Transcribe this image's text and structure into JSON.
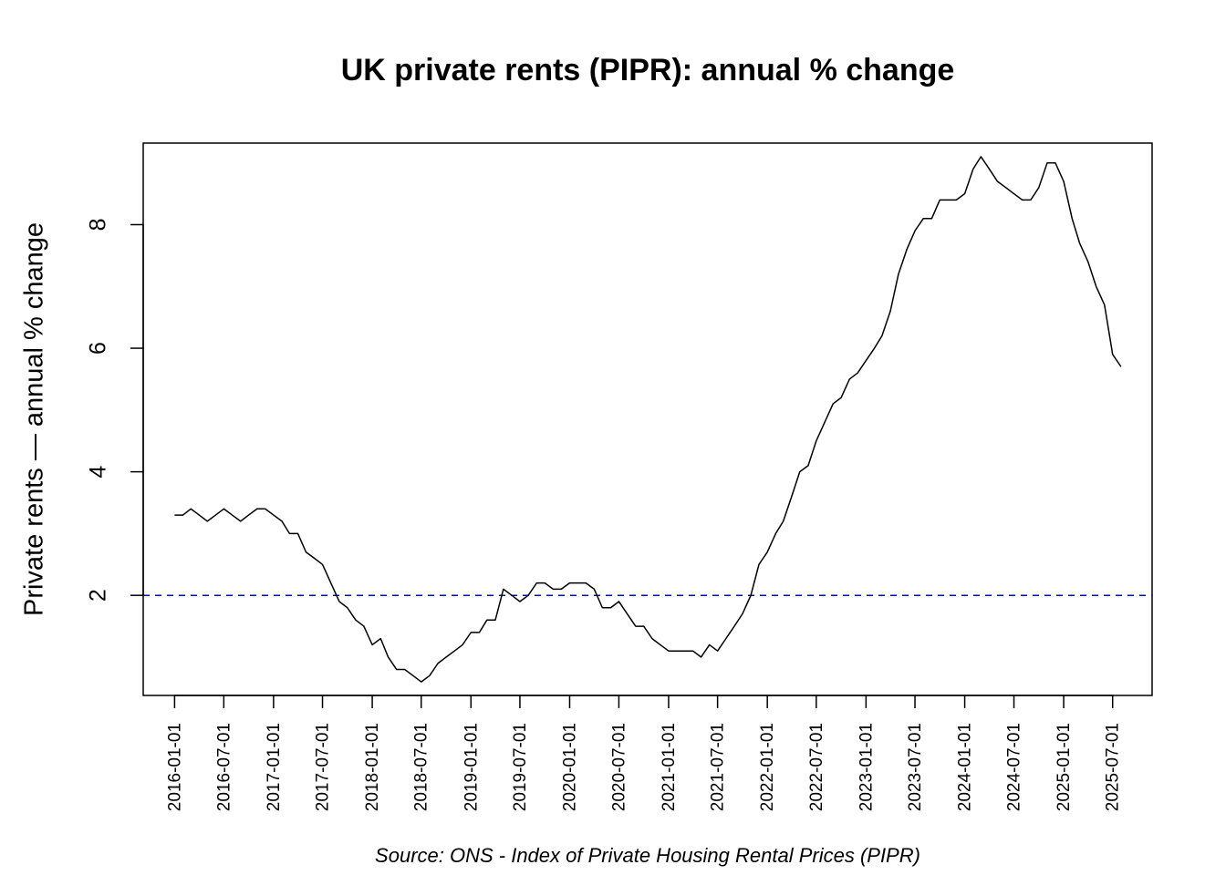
{
  "chart_data": {
    "type": "line",
    "title": "UK private rents (PIPR): annual % change",
    "xlabel": "",
    "ylabel": "Private rents — annual % change",
    "source": "Source: ONS - Index of Private Housing Rental Prices (PIPR)",
    "x_tick_labels": [
      "2016-01-01",
      "2016-07-01",
      "2017-01-01",
      "2017-07-01",
      "2018-01-01",
      "2018-07-01",
      "2019-01-01",
      "2019-07-01",
      "2020-01-01",
      "2020-07-01",
      "2021-01-01",
      "2021-07-01",
      "2022-01-01",
      "2022-07-01",
      "2023-01-01",
      "2023-07-01",
      "2024-01-01",
      "2024-07-01",
      "2025-01-01",
      "2025-07-01"
    ],
    "y_ticks": [
      2,
      4,
      6,
      8
    ],
    "xlim": [
      "2015-09-07",
      "2025-11-24"
    ],
    "ylim": [
      0.38,
      9.32
    ],
    "grid": false,
    "legend": "none",
    "reference_line": {
      "y": 2,
      "color": "#0000ff",
      "style": "dashed"
    },
    "series": [
      {
        "color": "#000000",
        "x": [
          "2016-01-01",
          "2016-02-01",
          "2016-03-01",
          "2016-04-01",
          "2016-05-01",
          "2016-06-01",
          "2016-07-01",
          "2016-08-01",
          "2016-09-01",
          "2016-10-01",
          "2016-11-01",
          "2016-12-01",
          "2017-01-01",
          "2017-02-01",
          "2017-03-01",
          "2017-04-01",
          "2017-05-01",
          "2017-06-01",
          "2017-07-01",
          "2017-08-01",
          "2017-09-01",
          "2017-10-01",
          "2017-11-01",
          "2017-12-01",
          "2018-01-01",
          "2018-02-01",
          "2018-03-01",
          "2018-04-01",
          "2018-05-01",
          "2018-06-01",
          "2018-07-01",
          "2018-08-01",
          "2018-09-01",
          "2018-10-01",
          "2018-11-01",
          "2018-12-01",
          "2019-01-01",
          "2019-02-01",
          "2019-03-01",
          "2019-04-01",
          "2019-05-01",
          "2019-06-01",
          "2019-07-01",
          "2019-08-01",
          "2019-09-01",
          "2019-10-01",
          "2019-11-01",
          "2019-12-01",
          "2020-01-01",
          "2020-02-01",
          "2020-03-01",
          "2020-04-01",
          "2020-05-01",
          "2020-06-01",
          "2020-07-01",
          "2020-08-01",
          "2020-09-01",
          "2020-10-01",
          "2020-11-01",
          "2020-12-01",
          "2021-01-01",
          "2021-02-01",
          "2021-03-01",
          "2021-04-01",
          "2021-05-01",
          "2021-06-01",
          "2021-07-01",
          "2021-08-01",
          "2021-09-01",
          "2021-10-01",
          "2021-11-01",
          "2021-12-01",
          "2022-01-01",
          "2022-02-01",
          "2022-03-01",
          "2022-04-01",
          "2022-05-01",
          "2022-06-01",
          "2022-07-01",
          "2022-08-01",
          "2022-09-01",
          "2022-10-01",
          "2022-11-01",
          "2022-12-01",
          "2023-01-01",
          "2023-02-01",
          "2023-03-01",
          "2023-04-01",
          "2023-05-01",
          "2023-06-01",
          "2023-07-01",
          "2023-08-01",
          "2023-09-01",
          "2023-10-01",
          "2023-11-01",
          "2023-12-01",
          "2024-01-01",
          "2024-02-01",
          "2024-03-01",
          "2024-04-01",
          "2024-05-01",
          "2024-06-01",
          "2024-07-01",
          "2024-08-01",
          "2024-09-01",
          "2024-10-01",
          "2024-11-01",
          "2024-12-01",
          "2025-01-01",
          "2025-02-01",
          "2025-03-01",
          "2025-04-01",
          "2025-05-01",
          "2025-06-01",
          "2025-07-01",
          "2025-08-01"
        ],
        "values": [
          3.3,
          3.3,
          3.4,
          3.3,
          3.2,
          3.3,
          3.4,
          3.3,
          3.2,
          3.3,
          3.4,
          3.4,
          3.3,
          3.2,
          3.0,
          3.0,
          2.7,
          2.6,
          2.5,
          2.2,
          1.9,
          1.8,
          1.6,
          1.5,
          1.2,
          1.3,
          1.0,
          0.8,
          0.8,
          0.7,
          0.6,
          0.7,
          0.9,
          1.0,
          1.1,
          1.2,
          1.4,
          1.4,
          1.6,
          1.6,
          2.1,
          2.0,
          1.9,
          2.0,
          2.2,
          2.2,
          2.1,
          2.1,
          2.2,
          2.2,
          2.2,
          2.1,
          1.8,
          1.8,
          1.9,
          1.7,
          1.5,
          1.5,
          1.3,
          1.2,
          1.1,
          1.1,
          1.1,
          1.1,
          1.0,
          1.2,
          1.1,
          1.3,
          1.5,
          1.7,
          2.0,
          2.5,
          2.7,
          3.0,
          3.2,
          3.6,
          4.0,
          4.1,
          4.5,
          4.8,
          5.1,
          5.2,
          5.5,
          5.6,
          5.8,
          6.0,
          6.2,
          6.6,
          7.2,
          7.6,
          7.9,
          8.1,
          8.1,
          8.4,
          8.4,
          8.4,
          8.5,
          8.9,
          9.1,
          8.9,
          8.7,
          8.6,
          8.5,
          8.4,
          8.4,
          8.6,
          9.0,
          9.0,
          8.7,
          8.1,
          7.7,
          7.4,
          7.0,
          6.7,
          5.9,
          5.7
        ]
      }
    ]
  }
}
